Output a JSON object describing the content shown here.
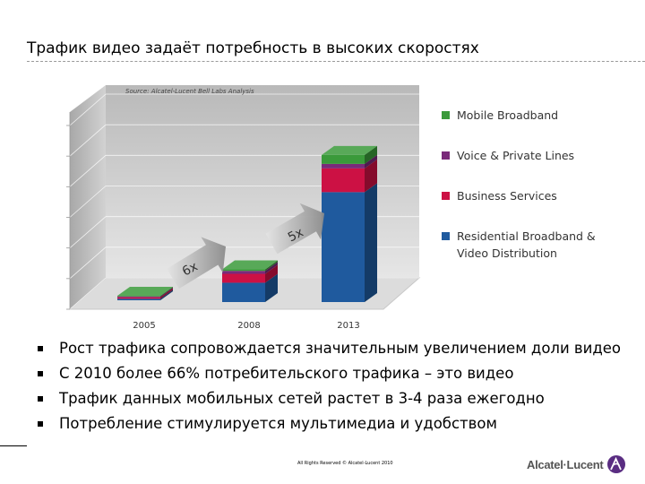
{
  "slide": {
    "title": "Трафик видео задаёт потребность в высоких скоростях",
    "bullets": [
      "Рост трафика сопровождается значительным увеличением доли видео",
      "С 2010 более 66% потребительского трафика – это видео",
      "Трафик данных мобильных сетей растет в 3-4 раза ежегодно",
      "Потребление стимулируется мультимедиа и удобством"
    ],
    "footer": {
      "copyright": "All Rights Reserved © Alcatel-Lucent 2010",
      "logo_text": "Alcatel·Lucent"
    }
  },
  "chart_data": {
    "type": "bar",
    "stacked": true,
    "three_d": true,
    "source": "Source: Alcatel-Lucent Bell Labs Analysis",
    "categories": [
      "2005",
      "2008",
      "2013"
    ],
    "series": [
      {
        "name": "Residential Broadband & Video Distribution",
        "color": "#1f5a9e",
        "values": [
          0.5,
          6.5,
          37
        ]
      },
      {
        "name": "Business  Services",
        "color": "#cc1144",
        "values": [
          0.5,
          3,
          8
        ]
      },
      {
        "name": "Voice & Private Lines",
        "color": "#7a2a7a",
        "values": [
          0.3,
          1,
          1.5
        ]
      },
      {
        "name": "Mobile Broadband",
        "color": "#3a9a3a",
        "values": [
          0.2,
          0.5,
          3
        ]
      }
    ],
    "legend_order": [
      "Mobile Broadband",
      "Voice & Private Lines",
      "Business  Services",
      "Residential Broadband & Video Distribution"
    ],
    "legend_position": "right",
    "annotations": [
      "6x",
      "5x"
    ],
    "ylim": [
      0,
      60
    ],
    "grid": true
  }
}
